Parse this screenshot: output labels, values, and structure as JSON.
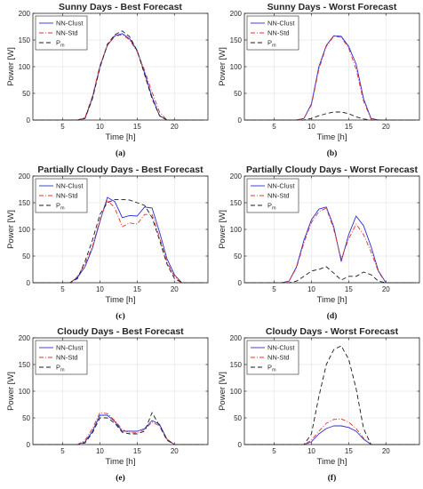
{
  "chart_data": [
    {
      "type": "line",
      "title": "Sunny Days - Best Forecast",
      "caption": "(a)",
      "xlabel": "Time [h]",
      "ylabel": "Power [W]",
      "xlim": [
        1,
        24.5
      ],
      "ylim": [
        0,
        200
      ],
      "xticks": [
        5,
        10,
        15,
        20
      ],
      "yticks": [
        0,
        50,
        100,
        150,
        200
      ],
      "grid": true,
      "legend": "top-left",
      "x": [
        1,
        2,
        3,
        4,
        5,
        6,
        7,
        8,
        9,
        10,
        11,
        12,
        13,
        14,
        15,
        16,
        17,
        18,
        19,
        20,
        21,
        22,
        23,
        24
      ],
      "series": [
        {
          "name": "NN-Clust",
          "color": "#2b2bd9",
          "dash": "",
          "values": [
            0,
            0,
            0,
            0,
            0,
            0,
            0,
            3,
            42,
            100,
            140,
            158,
            162,
            152,
            130,
            88,
            43,
            8,
            0,
            0,
            0,
            0,
            0,
            0
          ]
        },
        {
          "name": "NN-Std",
          "color": "#e0322b",
          "dash": "5,2,1,2",
          "values": [
            0,
            0,
            0,
            0,
            0,
            0,
            0,
            5,
            45,
            102,
            140,
            157,
            160,
            150,
            128,
            93,
            52,
            15,
            0,
            0,
            0,
            0,
            0,
            0
          ]
        },
        {
          "name": "P",
          "sub": "m",
          "color": "#1a1a1a",
          "dash": "5,3",
          "values": [
            0,
            0,
            0,
            0,
            0,
            0,
            0,
            3,
            40,
            98,
            142,
            160,
            167,
            156,
            130,
            85,
            40,
            8,
            0,
            0,
            0,
            0,
            0,
            0
          ]
        }
      ]
    },
    {
      "type": "line",
      "title": "Sunny Days - Worst Forecast",
      "caption": "(b)",
      "xlabel": "Time [h]",
      "ylabel": "Power [W]",
      "xlim": [
        1,
        24.5
      ],
      "ylim": [
        0,
        200
      ],
      "xticks": [
        5,
        10,
        15,
        20
      ],
      "yticks": [
        0,
        50,
        100,
        150,
        200
      ],
      "grid": true,
      "legend": "top-left",
      "x": [
        1,
        2,
        3,
        4,
        5,
        6,
        7,
        8,
        9,
        10,
        11,
        12,
        13,
        14,
        15,
        16,
        17,
        18,
        19,
        20,
        21,
        22,
        23,
        24
      ],
      "series": [
        {
          "name": "NN-Clust",
          "color": "#2b2bd9",
          "dash": "",
          "values": [
            0,
            0,
            0,
            0,
            0,
            0,
            0,
            0,
            3,
            30,
            100,
            140,
            158,
            157,
            138,
            105,
            40,
            3,
            0,
            0,
            0,
            0,
            0,
            0
          ]
        },
        {
          "name": "NN-Std",
          "color": "#e0322b",
          "dash": "5,2,1,2",
          "values": [
            0,
            0,
            0,
            0,
            0,
            0,
            0,
            0,
            3,
            28,
            95,
            138,
            157,
            155,
            135,
            95,
            35,
            2,
            0,
            0,
            0,
            0,
            0,
            0
          ]
        },
        {
          "name": "P",
          "sub": "m",
          "color": "#1a1a1a",
          "dash": "5,3",
          "values": [
            0,
            0,
            0,
            0,
            0,
            0,
            0,
            0,
            0,
            3,
            8,
            12,
            15,
            15,
            12,
            6,
            2,
            0,
            0,
            0,
            0,
            0,
            0,
            0
          ]
        }
      ]
    },
    {
      "type": "line",
      "title": "Partially Cloudy Days - Best Forecast",
      "caption": "(c)",
      "xlabel": "Time [h]",
      "ylabel": "Power [W]",
      "xlim": [
        1,
        24.5
      ],
      "ylim": [
        0,
        200
      ],
      "xticks": [
        5,
        10,
        15,
        20
      ],
      "yticks": [
        0,
        50,
        100,
        150,
        200
      ],
      "grid": true,
      "legend": "top-left",
      "x": [
        1,
        2,
        3,
        4,
        5,
        6,
        7,
        8,
        9,
        10,
        11,
        12,
        13,
        14,
        15,
        16,
        17,
        18,
        19,
        20,
        21,
        22,
        23,
        24
      ],
      "series": [
        {
          "name": "NN-Clust",
          "color": "#2b2bd9",
          "dash": "",
          "values": [
            0,
            0,
            0,
            0,
            0,
            0,
            10,
            30,
            65,
            115,
            160,
            152,
            122,
            126,
            125,
            142,
            140,
            95,
            45,
            15,
            0,
            0,
            0,
            0
          ]
        },
        {
          "name": "NN-Std",
          "color": "#e0322b",
          "dash": "5,2,1,2",
          "values": [
            0,
            0,
            0,
            0,
            0,
            0,
            12,
            35,
            68,
            118,
            155,
            140,
            105,
            112,
            110,
            128,
            128,
            85,
            38,
            12,
            0,
            0,
            0,
            0
          ]
        },
        {
          "name": "P",
          "sub": "m",
          "color": "#1a1a1a",
          "dash": "5,3",
          "values": [
            0,
            0,
            0,
            0,
            0,
            0,
            8,
            40,
            80,
            128,
            150,
            156,
            156,
            155,
            150,
            145,
            122,
            80,
            35,
            8,
            0,
            0,
            0,
            0
          ]
        }
      ]
    },
    {
      "type": "line",
      "title": "Partially Cloudy Days - Worst Forecast",
      "caption": "(d)",
      "xlabel": "Time [h]",
      "ylabel": "Power [W]",
      "xlim": [
        1,
        24.5
      ],
      "ylim": [
        0,
        200
      ],
      "xticks": [
        5,
        10,
        15,
        20
      ],
      "yticks": [
        0,
        50,
        100,
        150,
        200
      ],
      "grid": true,
      "legend": "top-left",
      "x": [
        1,
        2,
        3,
        4,
        5,
        6,
        7,
        8,
        9,
        10,
        11,
        12,
        13,
        14,
        15,
        16,
        17,
        18,
        19,
        20,
        21,
        22,
        23,
        24
      ],
      "series": [
        {
          "name": "NN-Clust",
          "color": "#2b2bd9",
          "dash": "",
          "values": [
            0,
            0,
            0,
            0,
            0,
            0,
            3,
            30,
            80,
            118,
            138,
            142,
            105,
            40,
            90,
            125,
            107,
            68,
            22,
            0,
            0,
            0,
            0,
            0
          ]
        },
        {
          "name": "NN-Std",
          "color": "#e0322b",
          "dash": "5,2,1,2",
          "values": [
            0,
            0,
            0,
            0,
            0,
            0,
            3,
            28,
            75,
            113,
            133,
            140,
            100,
            45,
            82,
            110,
            90,
            58,
            20,
            0,
            0,
            0,
            0,
            0
          ]
        },
        {
          "name": "P",
          "sub": "m",
          "color": "#1a1a1a",
          "dash": "5,3",
          "values": [
            0,
            0,
            0,
            0,
            0,
            0,
            0,
            3,
            12,
            22,
            25,
            30,
            18,
            5,
            12,
            12,
            20,
            15,
            3,
            0,
            0,
            0,
            0,
            0
          ]
        }
      ]
    },
    {
      "type": "line",
      "title": "Cloudy Days - Best Forecast",
      "caption": "(e)",
      "xlabel": "Time [h]",
      "ylabel": "Power [W]",
      "xlim": [
        1,
        24.5
      ],
      "ylim": [
        0,
        200
      ],
      "xticks": [
        5,
        10,
        15,
        20
      ],
      "yticks": [
        0,
        50,
        100,
        150,
        200
      ],
      "grid": true,
      "legend": "top-left",
      "x": [
        1,
        2,
        3,
        4,
        5,
        6,
        7,
        8,
        9,
        10,
        11,
        12,
        13,
        14,
        15,
        16,
        17,
        18,
        19,
        20,
        21,
        22,
        23,
        24
      ],
      "series": [
        {
          "name": "NN-Clust",
          "color": "#2b2bd9",
          "dash": "",
          "values": [
            0,
            0,
            0,
            0,
            0,
            0,
            0,
            5,
            25,
            55,
            55,
            43,
            25,
            25,
            25,
            30,
            45,
            38,
            10,
            0,
            0,
            0,
            0,
            0
          ]
        },
        {
          "name": "NN-Std",
          "color": "#e0322b",
          "dash": "5,2,1,2",
          "values": [
            0,
            0,
            0,
            0,
            0,
            0,
            0,
            8,
            30,
            60,
            58,
            45,
            28,
            22,
            22,
            28,
            42,
            35,
            10,
            0,
            0,
            0,
            0,
            0
          ]
        },
        {
          "name": "P",
          "sub": "m",
          "color": "#1a1a1a",
          "dash": "5,3",
          "values": [
            0,
            0,
            0,
            0,
            0,
            0,
            0,
            3,
            22,
            50,
            50,
            40,
            23,
            20,
            20,
            25,
            60,
            35,
            8,
            0,
            0,
            0,
            0,
            0
          ]
        }
      ]
    },
    {
      "type": "line",
      "title": "Cloudy Days - Worst Forecast",
      "caption": "(f)",
      "xlabel": "Time [h]",
      "ylabel": "Power [W]",
      "xlim": [
        1,
        24.5
      ],
      "ylim": [
        0,
        200
      ],
      "xticks": [
        5,
        10,
        15,
        20
      ],
      "yticks": [
        0,
        50,
        100,
        150,
        200
      ],
      "grid": true,
      "legend": "top-left",
      "x": [
        1,
        2,
        3,
        4,
        5,
        6,
        7,
        8,
        9,
        10,
        11,
        12,
        13,
        14,
        15,
        16,
        17,
        18,
        19,
        20,
        21,
        22,
        23,
        24
      ],
      "series": [
        {
          "name": "NN-Clust",
          "color": "#2b2bd9",
          "dash": "",
          "values": [
            0,
            0,
            0,
            0,
            0,
            0,
            0,
            0,
            0,
            5,
            20,
            30,
            35,
            35,
            32,
            25,
            10,
            0,
            0,
            0,
            0,
            0,
            0,
            0
          ]
        },
        {
          "name": "NN-Std",
          "color": "#e0322b",
          "dash": "5,2,1,2",
          "values": [
            0,
            0,
            0,
            0,
            0,
            0,
            0,
            0,
            0,
            8,
            25,
            40,
            47,
            48,
            42,
            30,
            12,
            0,
            0,
            0,
            0,
            0,
            0,
            0
          ]
        },
        {
          "name": "P",
          "sub": "m",
          "color": "#1a1a1a",
          "dash": "5,3",
          "values": [
            0,
            0,
            0,
            0,
            0,
            0,
            0,
            0,
            0,
            20,
            90,
            150,
            178,
            185,
            160,
            105,
            30,
            0,
            0,
            0,
            0,
            0,
            0,
            0
          ]
        }
      ]
    }
  ]
}
